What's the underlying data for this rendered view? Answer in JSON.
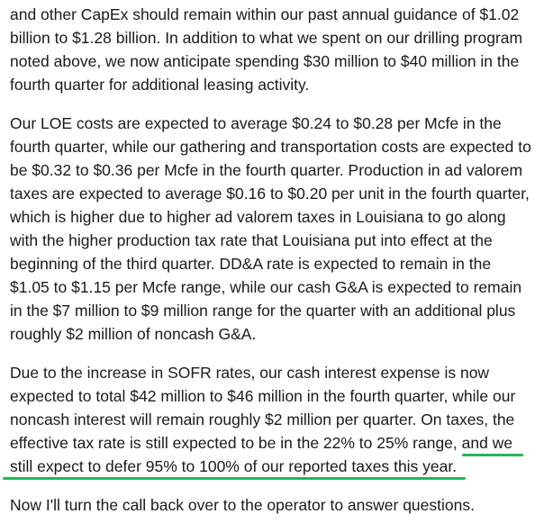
{
  "paragraphs": [
    {
      "lines": [
        "and other CapEx should remain within our past annual guidance of $1.02",
        "billion to $1.28 billion. In addition to what we spent on our drilling program",
        "noted above, we now anticipate spending $30 million to $40 million in the",
        "fourth quarter for additional leasing activity."
      ]
    },
    {
      "lines": [
        "Our LOE costs are expected to average $0.24 to $0.28 per Mcfe in the",
        "fourth quarter, while our gathering and transportation costs are expected to",
        "be $0.32 to $0.36 per Mcfe in the fourth quarter. Production in ad valorem",
        "taxes are expected to average $0.16 to $0.20 per unit in the fourth quarter,",
        "which is higher due to higher ad valorem taxes in Louisiana to go along",
        "with the higher production tax rate that Louisiana put into effect at the",
        "beginning of the third quarter. DD&A rate is expected to remain in the",
        "$1.05 to $1.15 per Mcfe range, while our cash G&A is expected to remain",
        "in the $7 million to $9 million range for the quarter with an additional plus",
        "roughly $2 million of noncash G&A."
      ]
    },
    {
      "lines": [
        "Due to the increase in SOFR rates, our cash interest expense is now",
        "expected to total $42 million to $46 million in the fourth quarter, while our",
        "noncash interest will remain roughly $2 million per quarter. On taxes, the"
      ],
      "line4_plain": "effective tax rate is still expected to be in the 22% to 25% range, ",
      "line4_highlight": "and we",
      "line5_highlight": "still expect to defer 95% to 100% of our reported taxes this year."
    },
    {
      "lines": [
        "Now I'll turn the call back over to the operator to answer questions."
      ]
    }
  ],
  "highlight_color": "#1db954"
}
